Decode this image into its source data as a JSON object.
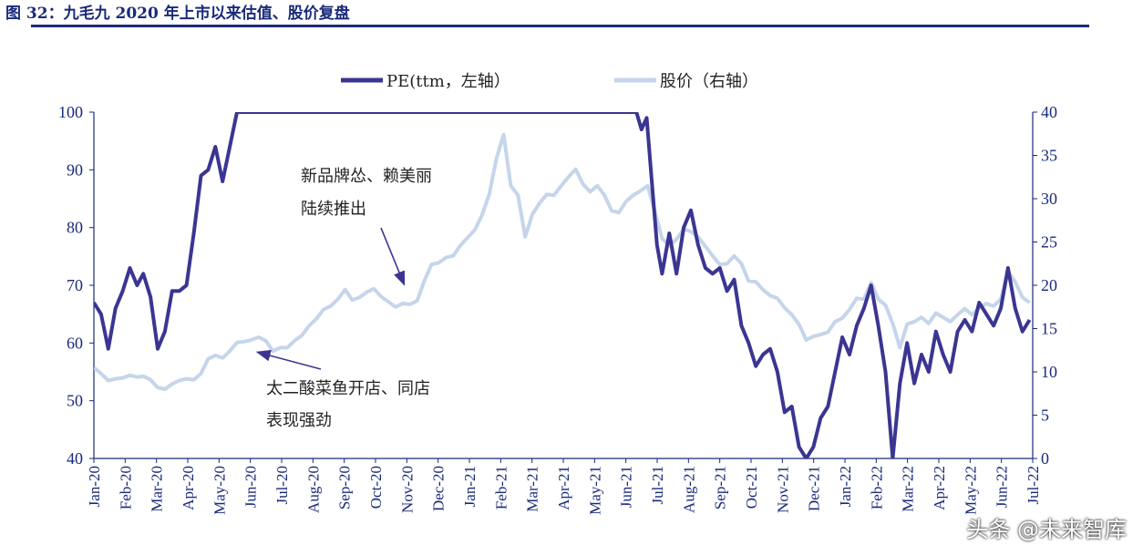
{
  "figure_title": "图 32：九毛九 2020 年上市以来估值、股价复盘",
  "watermark": "头条 @未来智库",
  "chart_data": {
    "type": "line",
    "title": "",
    "legend": {
      "placement": "top",
      "entries": [
        "PE(ttm，左轴）",
        "股价（右轴）"
      ]
    },
    "colors": {
      "pe": "#3b3592",
      "price": "#c5d5ea",
      "axis": "#1a2a7a",
      "text": "#222222"
    },
    "y_left": {
      "min": 40,
      "max": 100,
      "ticks": [
        "40",
        "50",
        "60",
        "70",
        "80",
        "90",
        "100"
      ]
    },
    "y_right": {
      "min": 0,
      "max": 40,
      "ticks": [
        "0",
        "5",
        "10",
        "15",
        "20",
        "25",
        "30",
        "35",
        "40"
      ]
    },
    "x_labels": [
      "Jan-20",
      "Feb-20",
      "Mar-20",
      "Apr-20",
      "May-20",
      "Jun-20",
      "Jul-20",
      "Aug-20",
      "Sep-20",
      "Oct-20",
      "Nov-20",
      "Dec-20",
      "Jan-21",
      "Feb-21",
      "Mar-21",
      "Apr-21",
      "May-21",
      "Jun-21",
      "Jul-21",
      "Aug-21",
      "Sep-21",
      "Oct-21",
      "Nov-21",
      "Dec-21",
      "Jan-22",
      "Feb-22",
      "Mar-22",
      "Apr-22",
      "May-22",
      "Jun-22",
      "Jul-22"
    ],
    "grid": false,
    "series": [
      {
        "name": "PE(ttm，左轴）",
        "axis": "left",
        "points": [
          [
            "2020-01-15",
            67
          ],
          [
            "2020-01-22",
            65
          ],
          [
            "2020-01-29",
            59
          ],
          [
            "2020-02-05",
            66
          ],
          [
            "2020-02-12",
            69
          ],
          [
            "2020-02-19",
            73
          ],
          [
            "2020-02-26",
            70
          ],
          [
            "2020-03-03",
            72
          ],
          [
            "2020-03-10",
            68
          ],
          [
            "2020-03-17",
            59
          ],
          [
            "2020-03-24",
            62
          ],
          [
            "2020-03-31",
            69
          ],
          [
            "2020-04-07",
            69
          ],
          [
            "2020-04-14",
            70
          ],
          [
            "2020-04-21",
            79
          ],
          [
            "2020-04-28",
            89
          ],
          [
            "2020-05-05",
            90
          ],
          [
            "2020-05-12",
            94
          ],
          [
            "2020-05-19",
            88
          ],
          [
            "2020-05-26",
            94
          ],
          [
            "2020-06-02",
            100
          ],
          [
            "2020-06-12",
            100
          ],
          [
            "2021-06-25",
            100
          ],
          [
            "2021-06-30",
            97
          ],
          [
            "2021-07-05",
            99
          ],
          [
            "2021-07-10",
            88
          ],
          [
            "2021-07-15",
            77
          ],
          [
            "2021-07-20",
            72
          ],
          [
            "2021-07-27",
            79
          ],
          [
            "2021-08-03",
            72
          ],
          [
            "2021-08-10",
            80
          ],
          [
            "2021-08-17",
            83
          ],
          [
            "2021-08-24",
            77
          ],
          [
            "2021-08-31",
            73
          ],
          [
            "2021-09-07",
            72
          ],
          [
            "2021-09-14",
            73
          ],
          [
            "2021-09-21",
            69
          ],
          [
            "2021-09-28",
            71
          ],
          [
            "2021-10-05",
            63
          ],
          [
            "2021-10-12",
            60
          ],
          [
            "2021-10-19",
            56
          ],
          [
            "2021-10-26",
            58
          ],
          [
            "2021-11-02",
            59
          ],
          [
            "2021-11-09",
            55
          ],
          [
            "2021-11-16",
            48
          ],
          [
            "2021-11-23",
            49
          ],
          [
            "2021-11-30",
            42
          ],
          [
            "2021-12-07",
            40
          ],
          [
            "2021-12-14",
            42
          ],
          [
            "2021-12-21",
            47
          ],
          [
            "2021-12-28",
            49
          ],
          [
            "2022-01-04",
            55
          ],
          [
            "2022-01-11",
            61
          ],
          [
            "2022-01-18",
            58
          ],
          [
            "2022-01-25",
            63
          ],
          [
            "2022-02-01",
            66
          ],
          [
            "2022-02-08",
            70
          ],
          [
            "2022-02-15",
            63
          ],
          [
            "2022-02-22",
            55
          ],
          [
            "2022-03-01",
            40
          ],
          [
            "2022-03-08",
            53
          ],
          [
            "2022-03-15",
            60
          ],
          [
            "2022-03-22",
            53
          ],
          [
            "2022-03-29",
            58
          ],
          [
            "2022-04-05",
            55
          ],
          [
            "2022-04-12",
            62
          ],
          [
            "2022-04-19",
            58
          ],
          [
            "2022-04-26",
            55
          ],
          [
            "2022-05-03",
            62
          ],
          [
            "2022-05-10",
            64
          ],
          [
            "2022-05-17",
            62
          ],
          [
            "2022-05-24",
            67
          ],
          [
            "2022-05-31",
            65
          ],
          [
            "2022-06-07",
            63
          ],
          [
            "2022-06-14",
            66
          ],
          [
            "2022-06-21",
            73
          ],
          [
            "2022-06-28",
            66
          ],
          [
            "2022-07-05",
            62
          ],
          [
            "2022-07-12",
            64
          ]
        ]
      },
      {
        "name": "股价（右轴）",
        "axis": "right",
        "points": [
          [
            "2020-01-15",
            10.5
          ],
          [
            "2020-01-22",
            9.8
          ],
          [
            "2020-01-29",
            9
          ],
          [
            "2020-02-05",
            9.2
          ],
          [
            "2020-02-12",
            9.3
          ],
          [
            "2020-02-19",
            9.6
          ],
          [
            "2020-02-26",
            9.4
          ],
          [
            "2020-03-03",
            9.5
          ],
          [
            "2020-03-10",
            9.1
          ],
          [
            "2020-03-17",
            8.2
          ],
          [
            "2020-03-24",
            8
          ],
          [
            "2020-03-31",
            8.6
          ],
          [
            "2020-04-07",
            9
          ],
          [
            "2020-04-14",
            9.2
          ],
          [
            "2020-04-21",
            9.1
          ],
          [
            "2020-04-28",
            9.8
          ],
          [
            "2020-05-05",
            11.5
          ],
          [
            "2020-05-12",
            11.9
          ],
          [
            "2020-05-19",
            11.6
          ],
          [
            "2020-05-26",
            12.4
          ],
          [
            "2020-06-02",
            13.4
          ],
          [
            "2020-06-09",
            13.5
          ],
          [
            "2020-06-16",
            13.7
          ],
          [
            "2020-06-23",
            14
          ],
          [
            "2020-06-30",
            13.6
          ],
          [
            "2020-07-07",
            12.4
          ],
          [
            "2020-07-14",
            12.8
          ],
          [
            "2020-07-21",
            12.8
          ],
          [
            "2020-07-28",
            13.6
          ],
          [
            "2020-08-04",
            14.2
          ],
          [
            "2020-08-11",
            15.3
          ],
          [
            "2020-08-18",
            16.1
          ],
          [
            "2020-08-25",
            17.2
          ],
          [
            "2020-09-01",
            17.6
          ],
          [
            "2020-09-08",
            18.4
          ],
          [
            "2020-09-15",
            19.5
          ],
          [
            "2020-09-22",
            18.3
          ],
          [
            "2020-09-29",
            18.6
          ],
          [
            "2020-10-06",
            19.2
          ],
          [
            "2020-10-13",
            19.6
          ],
          [
            "2020-10-20",
            18.7
          ],
          [
            "2020-10-27",
            18.1
          ],
          [
            "2020-11-03",
            17.5
          ],
          [
            "2020-11-10",
            17.9
          ],
          [
            "2020-11-17",
            17.8
          ],
          [
            "2020-11-24",
            18.2
          ],
          [
            "2020-12-01",
            20.5
          ],
          [
            "2020-12-08",
            22.4
          ],
          [
            "2020-12-15",
            22.6
          ],
          [
            "2020-12-22",
            23.2
          ],
          [
            "2020-12-29",
            23.4
          ],
          [
            "2021-01-05",
            24.6
          ],
          [
            "2021-01-12",
            25.5
          ],
          [
            "2021-01-19",
            26.4
          ],
          [
            "2021-01-26",
            28.1
          ],
          [
            "2021-02-02",
            30.5
          ],
          [
            "2021-02-09",
            34.6
          ],
          [
            "2021-02-16",
            37.4
          ],
          [
            "2021-02-23",
            31.5
          ],
          [
            "2021-03-02",
            30.4
          ],
          [
            "2021-03-09",
            25.6
          ],
          [
            "2021-03-16",
            28.2
          ],
          [
            "2021-03-23",
            29.5
          ],
          [
            "2021-03-30",
            30.5
          ],
          [
            "2021-04-06",
            30.4
          ],
          [
            "2021-04-13",
            31.5
          ],
          [
            "2021-04-20",
            32.5
          ],
          [
            "2021-04-27",
            33.4
          ],
          [
            "2021-05-04",
            31.7
          ],
          [
            "2021-05-11",
            30.8
          ],
          [
            "2021-05-18",
            31.5
          ],
          [
            "2021-05-25",
            30.4
          ],
          [
            "2021-06-01",
            28.6
          ],
          [
            "2021-06-08",
            28.4
          ],
          [
            "2021-06-15",
            29.7
          ],
          [
            "2021-06-22",
            30.4
          ],
          [
            "2021-06-29",
            30.9
          ],
          [
            "2021-07-06",
            31.5
          ],
          [
            "2021-07-13",
            28.5
          ],
          [
            "2021-07-20",
            25.4
          ],
          [
            "2021-07-27",
            24.6
          ],
          [
            "2021-08-03",
            25.3
          ],
          [
            "2021-08-10",
            26.5
          ],
          [
            "2021-08-17",
            26.2
          ],
          [
            "2021-08-24",
            25.6
          ],
          [
            "2021-08-31",
            24.5
          ],
          [
            "2021-09-07",
            23.4
          ],
          [
            "2021-09-14",
            22.4
          ],
          [
            "2021-09-21",
            22.5
          ],
          [
            "2021-09-28",
            23.4
          ],
          [
            "2021-10-05",
            22.5
          ],
          [
            "2021-10-12",
            20.5
          ],
          [
            "2021-10-19",
            20.4
          ],
          [
            "2021-10-26",
            19.5
          ],
          [
            "2021-11-02",
            18.8
          ],
          [
            "2021-11-09",
            18.5
          ],
          [
            "2021-11-16",
            17.4
          ],
          [
            "2021-11-23",
            16.6
          ],
          [
            "2021-11-30",
            15.5
          ],
          [
            "2021-12-07",
            13.7
          ],
          [
            "2021-12-14",
            14.1
          ],
          [
            "2021-12-21",
            14.3
          ],
          [
            "2021-12-28",
            14.6
          ],
          [
            "2022-01-04",
            15.8
          ],
          [
            "2022-01-11",
            16.2
          ],
          [
            "2022-01-18",
            17.2
          ],
          [
            "2022-01-25",
            18.5
          ],
          [
            "2022-02-01",
            18.4
          ],
          [
            "2022-02-08",
            20.3
          ],
          [
            "2022-02-15",
            18.4
          ],
          [
            "2022-02-22",
            17.7
          ],
          [
            "2022-03-01",
            15.6
          ],
          [
            "2022-03-08",
            12.8
          ],
          [
            "2022-03-15",
            15.5
          ],
          [
            "2022-03-22",
            15.8
          ],
          [
            "2022-03-29",
            16.3
          ],
          [
            "2022-04-05",
            15.6
          ],
          [
            "2022-04-12",
            16.8
          ],
          [
            "2022-04-19",
            16.3
          ],
          [
            "2022-04-26",
            15.8
          ],
          [
            "2022-05-03",
            16.6
          ],
          [
            "2022-05-10",
            17.3
          ],
          [
            "2022-05-17",
            16.6
          ],
          [
            "2022-05-24",
            17.4
          ],
          [
            "2022-05-31",
            17.9
          ],
          [
            "2022-06-07",
            17.6
          ],
          [
            "2022-06-14",
            18.4
          ],
          [
            "2022-06-21",
            21.6
          ],
          [
            "2022-06-28",
            20.4
          ],
          [
            "2022-07-05",
            18.6
          ],
          [
            "2022-07-12",
            18
          ]
        ]
      }
    ],
    "annotations": [
      {
        "lines": [
          "新品牌怂、赖美丽",
          "陆续推出"
        ],
        "arrow_to": [
          "2020-11-15",
          20.5
        ]
      },
      {
        "lines": [
          "太二酸菜鱼开店、同店",
          "表现强劲"
        ],
        "arrow_to": [
          "2020-06-20",
          12.7
        ]
      }
    ]
  }
}
